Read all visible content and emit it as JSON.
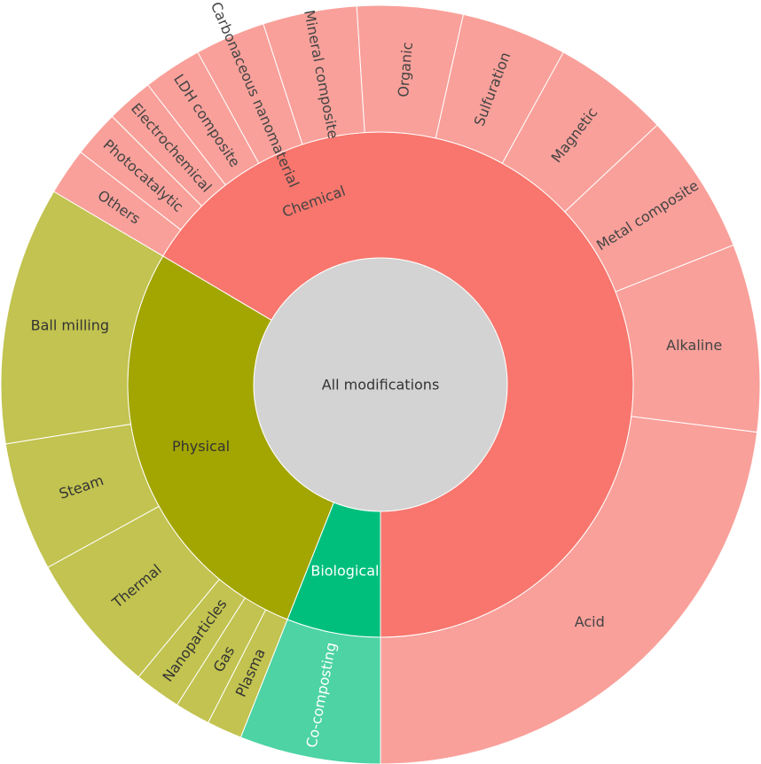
{
  "chart_data": {
    "type": "sunburst",
    "root": {
      "label": "All modifications",
      "color": "#d3d3d3"
    },
    "categories": [
      {
        "label": "Chemical",
        "color": "#f8766d",
        "child_color": "#f9a09a",
        "text_color": "#444444",
        "value": 66.5,
        "children": [
          {
            "label": "Acid",
            "value": 23
          },
          {
            "label": "Alkaline",
            "value": 8
          },
          {
            "label": "Metal composite",
            "value": 6
          },
          {
            "label": "Magnetic",
            "value": 5
          },
          {
            "label": "Sulfuration",
            "value": 4.5
          },
          {
            "label": "Organic",
            "value": 4.5
          },
          {
            "label": "Mineral composite",
            "value": 4
          },
          {
            "label": "Carbonaceous nanomaterial",
            "value": 3
          },
          {
            "label": "LDH composite",
            "value": 2.5
          },
          {
            "label": "Electrochemical",
            "value": 2
          },
          {
            "label": "Photocatalytic",
            "value": 2
          },
          {
            "label": "Others",
            "value": 2
          }
        ]
      },
      {
        "label": "Physical",
        "color": "#a3a500",
        "child_color": "#c2c350",
        "text_color": "#333333",
        "value": 27.5,
        "children": [
          {
            "label": "Ball milling",
            "value": 11
          },
          {
            "label": "Steam",
            "value": 5.5
          },
          {
            "label": "Thermal",
            "value": 6
          },
          {
            "label": "Nanoparticles",
            "value": 2
          },
          {
            "label": "Gas",
            "value": 1.5
          },
          {
            "label": "Plasma",
            "value": 1.5
          }
        ]
      },
      {
        "label": "Biological",
        "color": "#00bf7d",
        "child_color": "#4dd3a4",
        "text_color": "#ffffff",
        "value": 6,
        "children": [
          {
            "label": "Co-composting",
            "value": 6
          }
        ]
      }
    ]
  }
}
